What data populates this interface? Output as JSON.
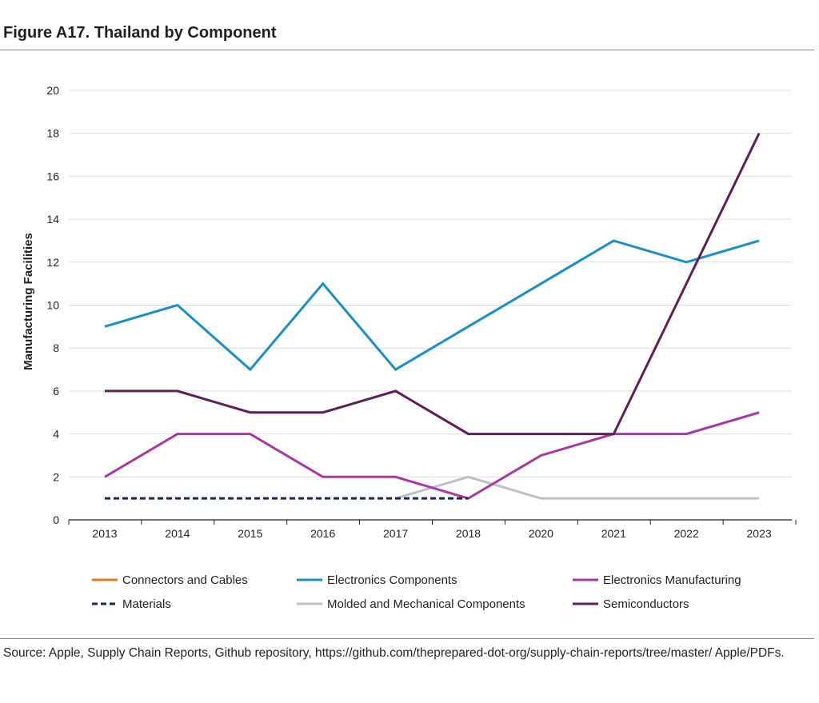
{
  "figure": {
    "title": "Figure A17. Thailand by Component",
    "source": "Source: Apple, Supply Chain Reports, Github repository, https://github.com/theprepared-dot-org/supply-chain-reports/tree/master/ Apple/PDFs."
  },
  "chart_data": {
    "type": "line",
    "title": "Figure A17. Thailand by Component",
    "xlabel": "",
    "ylabel": "Manufacturing Facilities",
    "categories": [
      "2013",
      "2014",
      "2015",
      "2016",
      "2017",
      "2018",
      "2020",
      "2021",
      "2022",
      "2023"
    ],
    "yticks": [
      0,
      2,
      4,
      6,
      8,
      10,
      12,
      14,
      16,
      18,
      20
    ],
    "ylim": [
      0,
      20
    ],
    "grid": true,
    "legend_position": "bottom",
    "series": [
      {
        "name": "Connectors and Cables",
        "color": "#e87722",
        "dash": false,
        "values": [
          null,
          null,
          null,
          null,
          null,
          null,
          null,
          null,
          null,
          null
        ]
      },
      {
        "name": "Electronics Components",
        "color": "#1a8fc4",
        "dash": false,
        "values": [
          9,
          10,
          7,
          11,
          7,
          9,
          11,
          13,
          12,
          13
        ]
      },
      {
        "name": "Electronics Manufacturing",
        "color": "#a8389f",
        "dash": false,
        "values": [
          2,
          4,
          4,
          2,
          2,
          1,
          3,
          4,
          4,
          5
        ]
      },
      {
        "name": "Materials",
        "color": "#1b2a4a",
        "dash": true,
        "values": [
          1,
          1,
          1,
          1,
          1,
          1,
          null,
          null,
          null,
          null
        ]
      },
      {
        "name": "Molded and Mechanical Components",
        "color": "#c0c0c0",
        "dash": false,
        "values": [
          null,
          null,
          null,
          null,
          1,
          2,
          1,
          1,
          1,
          1
        ]
      },
      {
        "name": "Semiconductors",
        "color": "#5c1f5a",
        "dash": false,
        "values": [
          6,
          6,
          5,
          5,
          6,
          4,
          4,
          4,
          11,
          18
        ]
      }
    ],
    "draw_order": [
      4,
      2,
      1,
      5,
      3
    ]
  }
}
